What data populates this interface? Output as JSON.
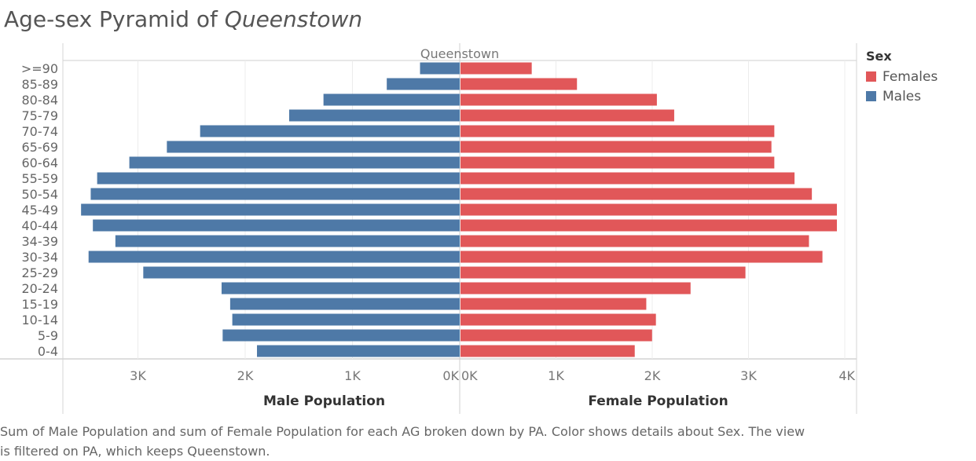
{
  "title": {
    "prefix": "Age-sex Pyramid of ",
    "place": "Queenstown"
  },
  "legend": {
    "title": "Sex",
    "items": [
      {
        "label": "Females",
        "color": "#e15759"
      },
      {
        "label": "Males",
        "color": "#4e79a7"
      }
    ]
  },
  "caption": {
    "line1": "Sum of Male Population and sum of Female Population for each AG broken down by PA.  Color shows details about Sex. The view",
    "line2": "is filtered on PA, which keeps Queenstown."
  },
  "chart_data": {
    "type": "bar",
    "orientation": "horizontal-pyramid",
    "header": "Queenstown",
    "categories": [
      ">=90",
      "85-89",
      "80-84",
      "75-79",
      "70-74",
      "65-69",
      "60-64",
      "55-59",
      "50-54",
      "45-49",
      "40-44",
      "34-39",
      "30-34",
      "25-29",
      "20-24",
      "15-19",
      "10-14",
      "5-9",
      "0-4"
    ],
    "series": [
      {
        "name": "Males",
        "color": "#4e79a7",
        "values": [
          370,
          680,
          1270,
          1590,
          2420,
          2730,
          3080,
          3380,
          3440,
          3530,
          3420,
          3210,
          3460,
          2950,
          2220,
          2140,
          2120,
          2210,
          1890
        ]
      },
      {
        "name": "Females",
        "color": "#e15759",
        "values": [
          740,
          1210,
          2040,
          2220,
          3260,
          3230,
          3260,
          3470,
          3650,
          3910,
          3910,
          3620,
          3760,
          2960,
          2390,
          1930,
          2030,
          1990,
          1810
        ]
      }
    ],
    "male_axis": {
      "label": "Male Population",
      "ticks": [
        "3K",
        "2K",
        "1K",
        "0K"
      ],
      "tick_values": [
        3000,
        2000,
        1000,
        0
      ],
      "range": [
        0,
        3700
      ]
    },
    "female_axis": {
      "label": "Female Population",
      "ticks": [
        "0K",
        "1K",
        "2K",
        "3K",
        "4K"
      ],
      "tick_values": [
        0,
        1000,
        2000,
        3000,
        4000
      ],
      "range": [
        0,
        4100
      ]
    },
    "grid": true
  }
}
